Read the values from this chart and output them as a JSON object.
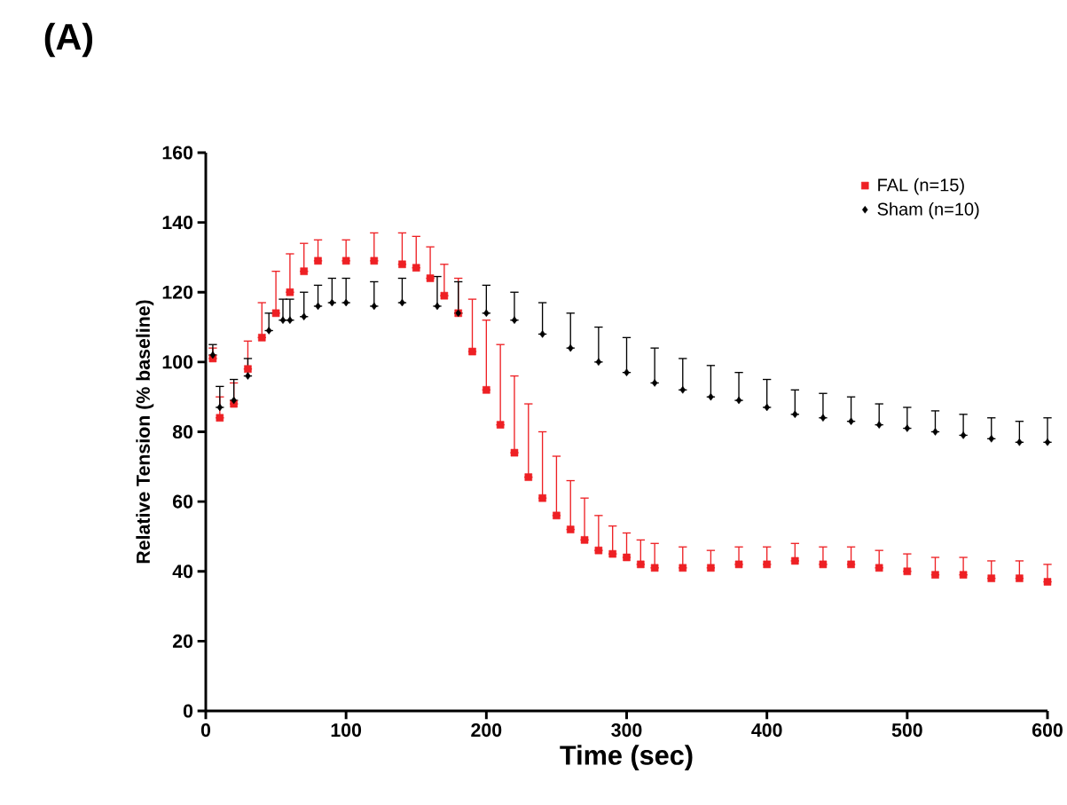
{
  "chart_data": {
    "type": "scatter",
    "title": "(A)",
    "xlabel": "Time (sec)",
    "ylabel": "Relative Tension (% baseline)",
    "xlim": [
      0,
      600
    ],
    "xticks": [
      0,
      100,
      200,
      300,
      400,
      500,
      600
    ],
    "ylim": [
      0,
      160
    ],
    "yticks": [
      0,
      20,
      40,
      60,
      80,
      100,
      120,
      140,
      160
    ],
    "grid": false,
    "legend": "top right",
    "series": [
      {
        "name": "FAL (n=15)",
        "color": "#ee2024",
        "marker": "square",
        "x": [
          5,
          10,
          20,
          30,
          40,
          50,
          60,
          70,
          80,
          100,
          120,
          140,
          150,
          160,
          170,
          180,
          190,
          200,
          210,
          220,
          230,
          240,
          250,
          260,
          270,
          280,
          290,
          300,
          310,
          320,
          340,
          360,
          380,
          400,
          420,
          440,
          460,
          480,
          500,
          520,
          540,
          560,
          580,
          600
        ],
        "values": [
          101,
          84,
          88,
          98,
          107,
          114,
          120,
          126,
          129,
          129,
          129,
          128,
          127,
          124,
          119,
          114,
          103,
          92,
          82,
          74,
          67,
          61,
          56,
          52,
          49,
          46,
          45,
          44,
          42,
          41,
          41,
          41,
          42,
          42,
          43,
          42,
          42,
          41,
          40,
          39,
          39,
          38,
          38,
          37
        ],
        "errors": [
          [
            101,
            104
          ],
          [
            84,
            90
          ],
          [
            88,
            94
          ],
          [
            98,
            106
          ],
          [
            107,
            117
          ],
          [
            114,
            126
          ],
          [
            120,
            131
          ],
          [
            126,
            134
          ],
          [
            129,
            135
          ],
          [
            129,
            135
          ],
          [
            129,
            137
          ],
          [
            128,
            137
          ],
          [
            127,
            136
          ],
          [
            124,
            133
          ],
          [
            119,
            128
          ],
          [
            114,
            124
          ],
          [
            103,
            118
          ],
          [
            92,
            112
          ],
          [
            82,
            105
          ],
          [
            74,
            96
          ],
          [
            67,
            88
          ],
          [
            61,
            80
          ],
          [
            56,
            73
          ],
          [
            52,
            66
          ],
          [
            49,
            61
          ],
          [
            46,
            56
          ],
          [
            45,
            53
          ],
          [
            44,
            51
          ],
          [
            42,
            49
          ],
          [
            41,
            48
          ],
          [
            41,
            47
          ],
          [
            41,
            46
          ],
          [
            42,
            47
          ],
          [
            42,
            47
          ],
          [
            43,
            48
          ],
          [
            42,
            47
          ],
          [
            42,
            47
          ],
          [
            41,
            46
          ],
          [
            40,
            45
          ],
          [
            39,
            44
          ],
          [
            39,
            44
          ],
          [
            38,
            43
          ],
          [
            38,
            43
          ],
          [
            37,
            42
          ]
        ]
      },
      {
        "name": "Sham (n=10)",
        "color": "#000000",
        "marker": "diamond",
        "x": [
          5,
          10,
          20,
          30,
          45,
          55,
          60,
          70,
          80,
          90,
          100,
          120,
          140,
          165,
          180,
          200,
          220,
          240,
          260,
          280,
          300,
          320,
          340,
          360,
          380,
          400,
          420,
          440,
          460,
          480,
          500,
          520,
          540,
          560,
          580,
          600
        ],
        "values": [
          102,
          87,
          89,
          96,
          109,
          112,
          112,
          113,
          116,
          117,
          117,
          116,
          117,
          116,
          114,
          114,
          112,
          108,
          104,
          100,
          97,
          94,
          92,
          90,
          89,
          87,
          85,
          84,
          83,
          82,
          81,
          80,
          79,
          78,
          77,
          77
        ],
        "errors": [
          [
            102,
            105
          ],
          [
            87,
            93
          ],
          [
            89,
            95
          ],
          [
            96,
            101
          ],
          [
            109,
            114
          ],
          [
            112,
            118
          ],
          [
            112,
            118
          ],
          [
            113,
            120
          ],
          [
            116,
            122
          ],
          [
            117,
            124
          ],
          [
            117,
            124
          ],
          [
            116,
            123
          ],
          [
            117,
            124
          ],
          [
            116,
            124.5
          ],
          [
            114,
            123
          ],
          [
            114,
            122
          ],
          [
            112,
            120
          ],
          [
            108,
            117
          ],
          [
            104,
            114
          ],
          [
            100,
            110
          ],
          [
            97,
            107
          ],
          [
            94,
            104
          ],
          [
            92,
            101
          ],
          [
            90,
            99
          ],
          [
            89,
            97
          ],
          [
            87,
            95
          ],
          [
            85,
            92
          ],
          [
            84,
            91
          ],
          [
            83,
            90
          ],
          [
            82,
            88
          ],
          [
            81,
            87
          ],
          [
            80,
            86
          ],
          [
            79,
            85
          ],
          [
            78,
            84
          ],
          [
            77,
            83
          ],
          [
            77,
            84
          ]
        ]
      }
    ]
  }
}
